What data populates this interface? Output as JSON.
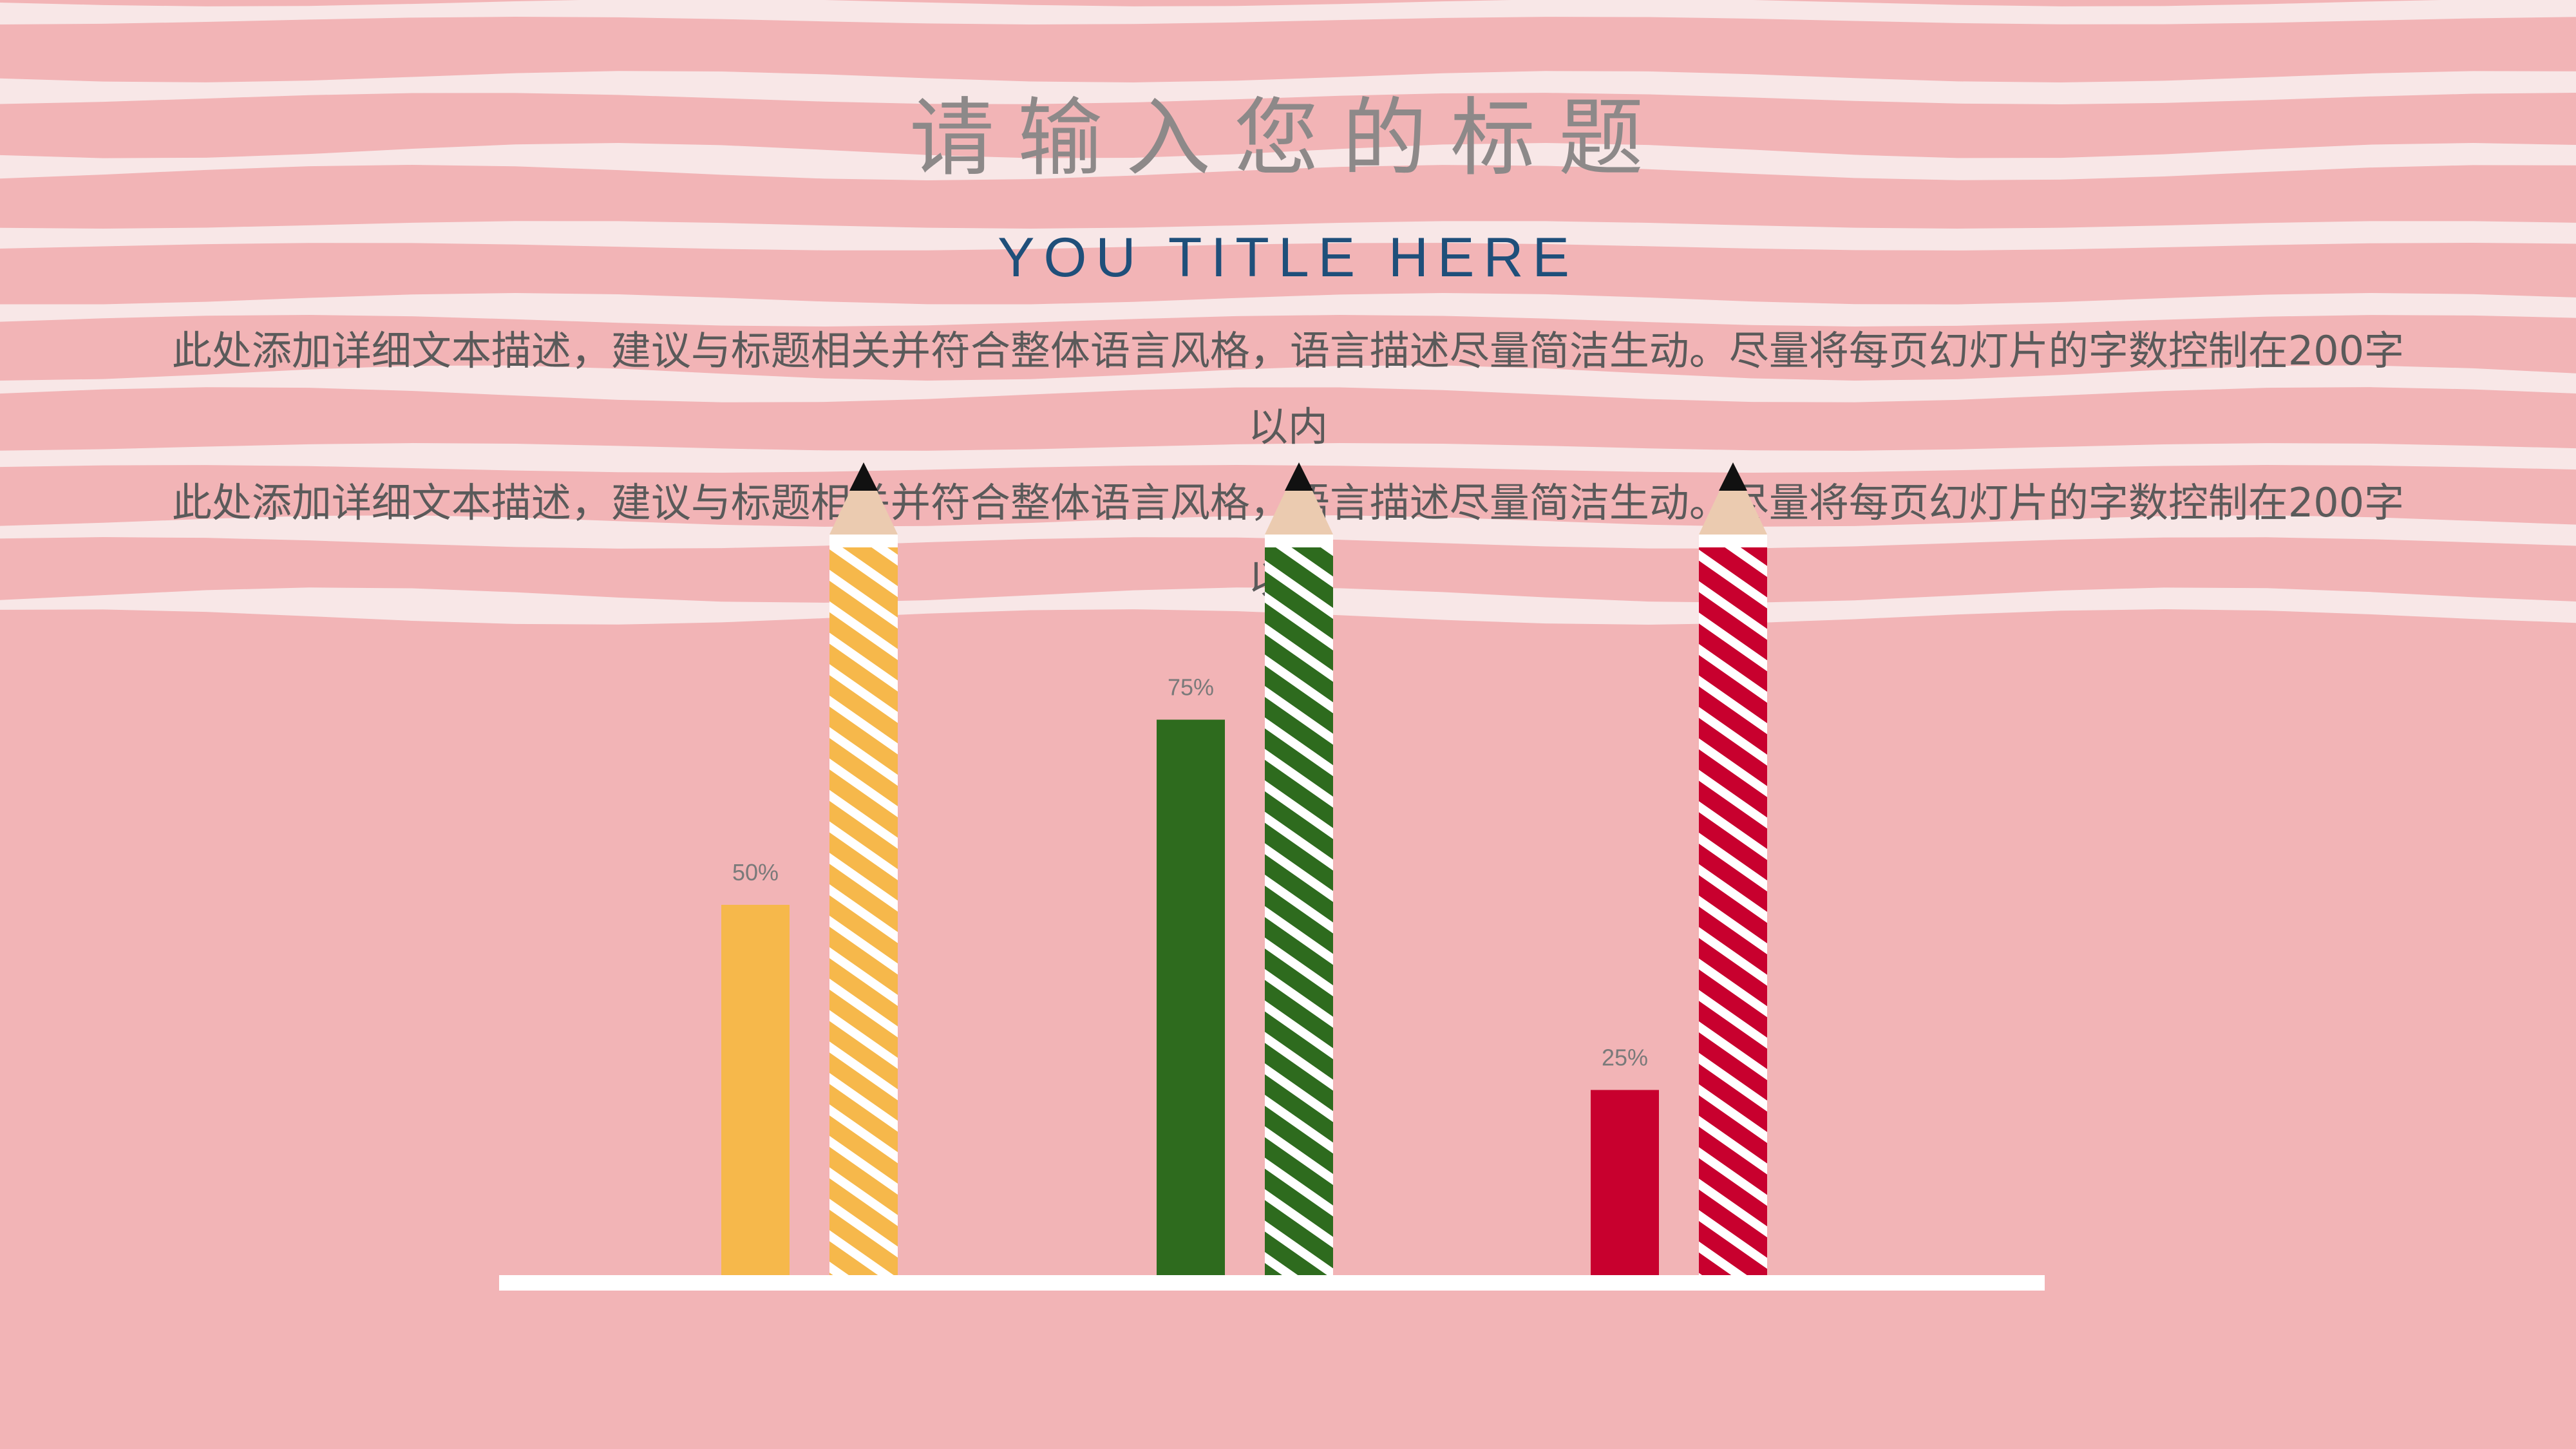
{
  "slide": {
    "title_cn": "请输入您的标题",
    "title_en": "YOU TITLE HERE",
    "paragraphs": [
      "此处添加详细文本描述，建议与标题相关并符合整体语言风格，语言描述尽量简洁生动。尽量将每页幻灯片的字数控制在200字以内",
      "此处添加详细文本描述，建议与标题相关并符合整体语言风格，语言描述尽量简洁生动。尽量将每页幻灯片的字数控制在200字以内"
    ]
  },
  "colors": {
    "background": "#f2b4b6",
    "stripes": "#f8ecec",
    "title_cn": "#8d8989",
    "title_en": "#1f4f7a",
    "text": "#5a5a5a",
    "baseline": "#ffffff",
    "pencil_wood": "#ebcbb0",
    "pencil_lead": "#111111"
  },
  "chart_data": {
    "type": "bar",
    "ylim": [
      0,
      100
    ],
    "series": [
      {
        "label": "50%",
        "value": 50,
        "color": "#f6b84b"
      },
      {
        "label": "75%",
        "value": 75,
        "color": "#2e6b1e"
      },
      {
        "label": "25%",
        "value": 25,
        "color": "#c8002e"
      }
    ],
    "pencil_value": 100,
    "grid": false
  }
}
